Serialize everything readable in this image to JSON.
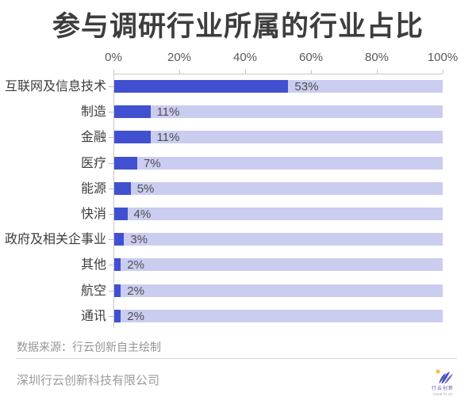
{
  "title": "参与调研行业所属的行业占比",
  "chart_data": {
    "type": "bar",
    "orientation": "horizontal",
    "title": "参与调研行业所属的行业占比",
    "categories": [
      "互联网及信息技术",
      "制造",
      "金融",
      "医疗",
      "能源",
      "快消",
      "政府及相关企事业",
      "其他",
      "航空",
      "通讯"
    ],
    "values": [
      53,
      11,
      11,
      7,
      5,
      4,
      3,
      2,
      2,
      2
    ],
    "value_labels": [
      "53%",
      "11%",
      "11%",
      "7%",
      "5%",
      "4%",
      "3%",
      "2%",
      "2%",
      "2%"
    ],
    "x_ticks": [
      "0%",
      "20%",
      "40%",
      "60%",
      "80%",
      "100%"
    ],
    "xlim": [
      0,
      100
    ],
    "grid": false,
    "legend": false,
    "bar_color": "#4150d0",
    "track_color": "#cacdf0"
  },
  "footer": {
    "source": "数据来源：行云创新自主绘制",
    "company": "深圳行云创新科技有限公司",
    "logo": {
      "name": "行云创新",
      "subtext": "Cloud To Go",
      "accent_yellow": "#f2c14e",
      "accent_purple": "#5b4da8",
      "accent_blue": "#4150d0"
    }
  }
}
